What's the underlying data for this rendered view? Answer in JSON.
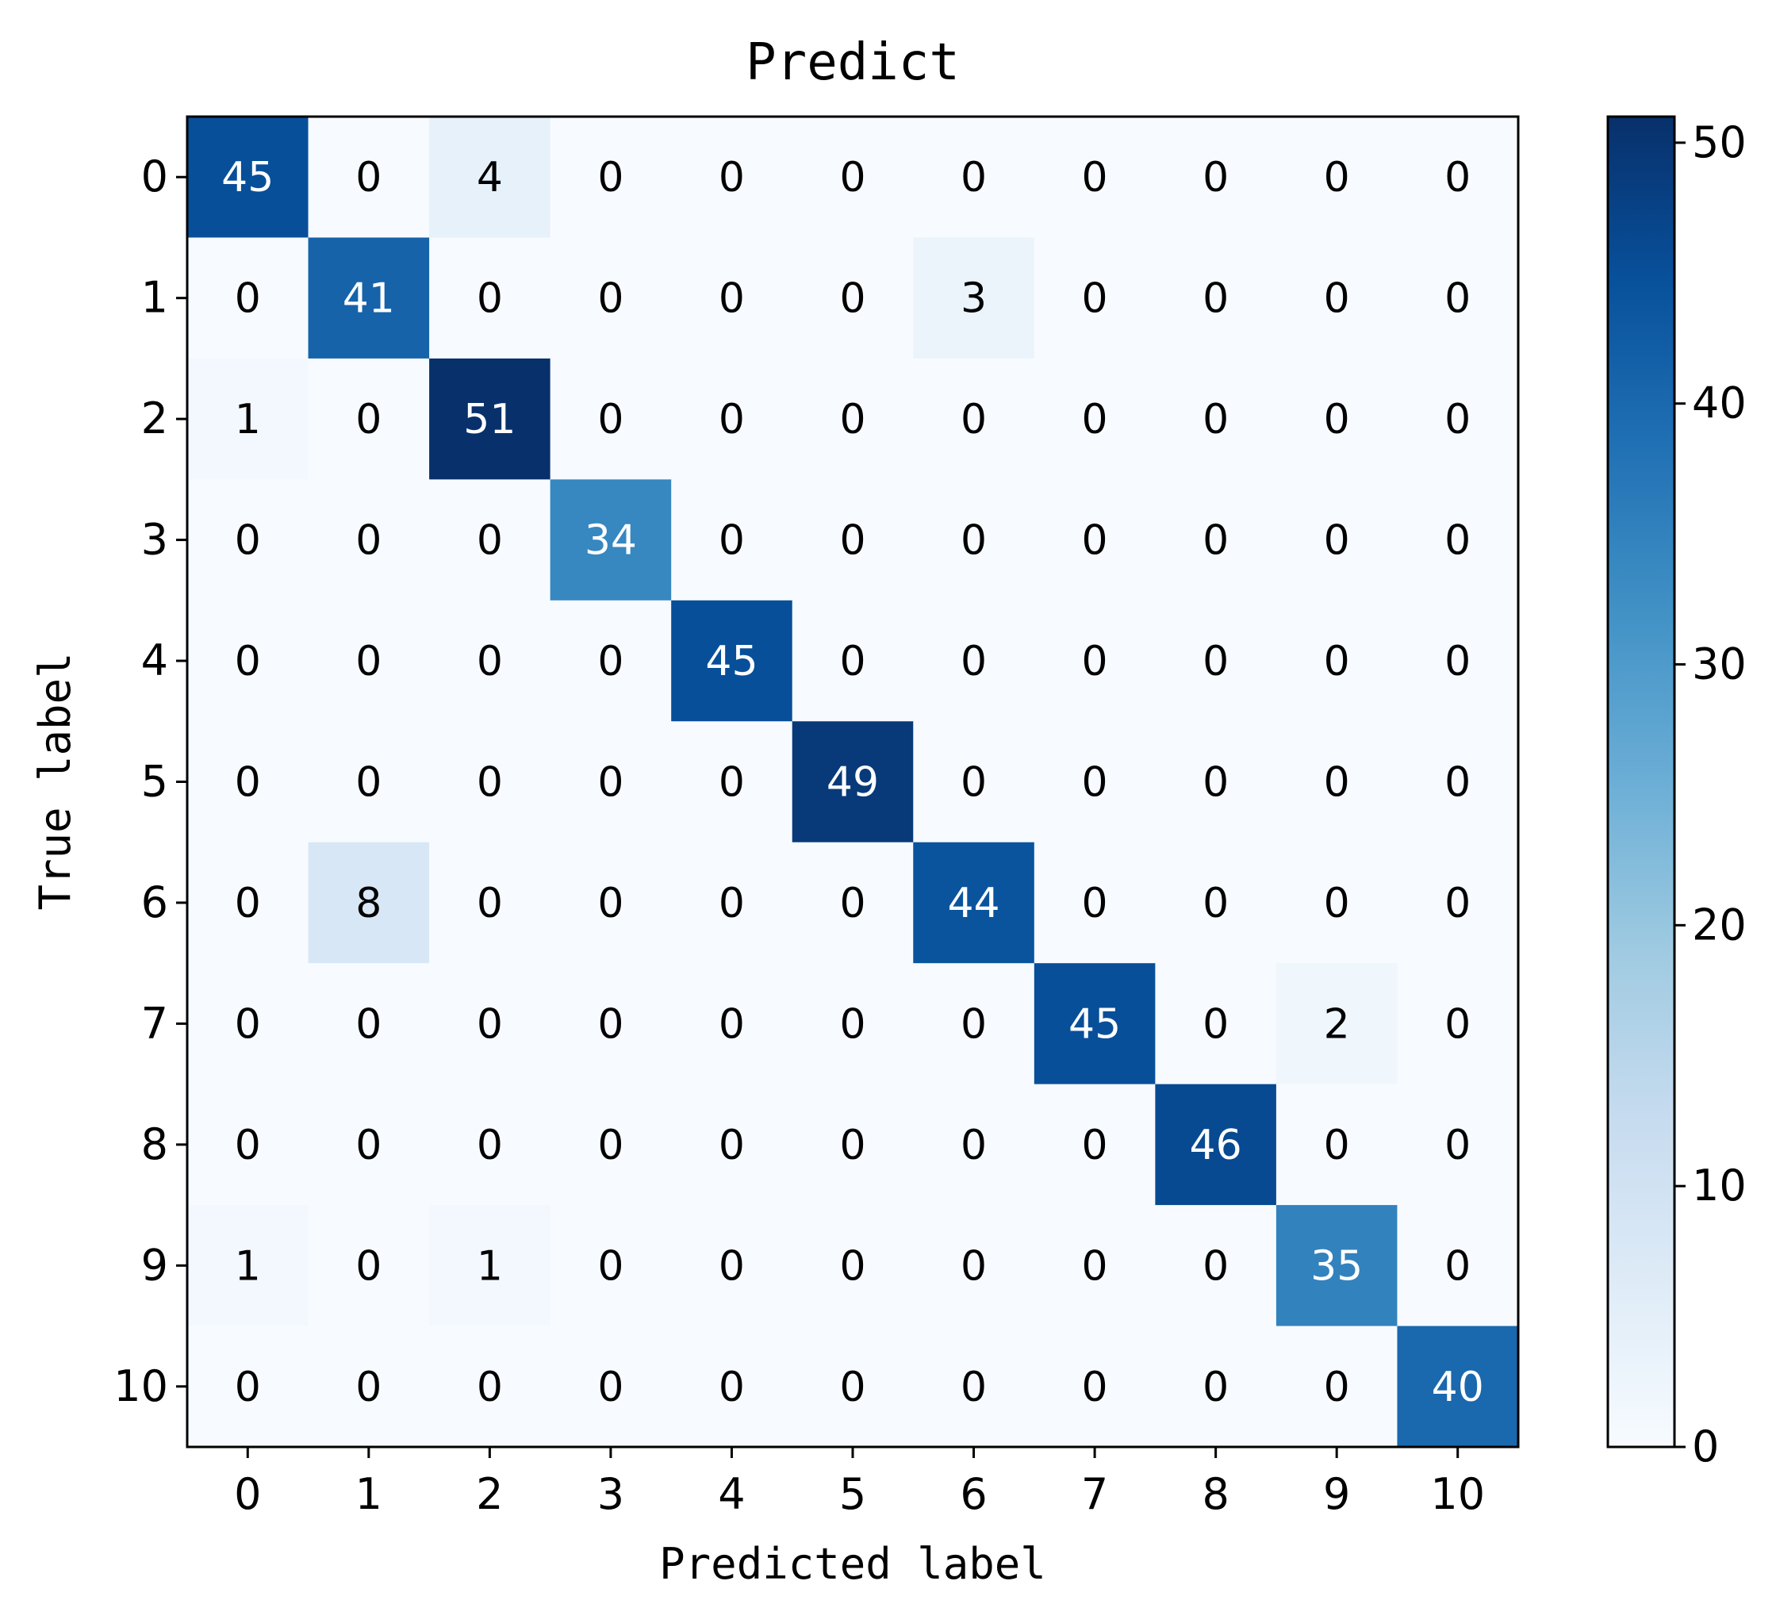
{
  "chart_data": {
    "type": "heatmap",
    "title": "Predict",
    "xlabel": "Predicted label",
    "ylabel": "True label",
    "x_categories": [
      "0",
      "1",
      "2",
      "3",
      "4",
      "5",
      "6",
      "7",
      "8",
      "9",
      "10"
    ],
    "y_categories": [
      "0",
      "1",
      "2",
      "3",
      "4",
      "5",
      "6",
      "7",
      "8",
      "9",
      "10"
    ],
    "matrix": [
      [
        45,
        0,
        4,
        0,
        0,
        0,
        0,
        0,
        0,
        0,
        0
      ],
      [
        0,
        41,
        0,
        0,
        0,
        0,
        3,
        0,
        0,
        0,
        0
      ],
      [
        1,
        0,
        51,
        0,
        0,
        0,
        0,
        0,
        0,
        0,
        0
      ],
      [
        0,
        0,
        0,
        34,
        0,
        0,
        0,
        0,
        0,
        0,
        0
      ],
      [
        0,
        0,
        0,
        0,
        45,
        0,
        0,
        0,
        0,
        0,
        0
      ],
      [
        0,
        0,
        0,
        0,
        0,
        49,
        0,
        0,
        0,
        0,
        0
      ],
      [
        0,
        8,
        0,
        0,
        0,
        0,
        44,
        0,
        0,
        0,
        0
      ],
      [
        0,
        0,
        0,
        0,
        0,
        0,
        0,
        45,
        0,
        2,
        0
      ],
      [
        0,
        0,
        0,
        0,
        0,
        0,
        0,
        0,
        46,
        0,
        0
      ],
      [
        1,
        0,
        1,
        0,
        0,
        0,
        0,
        0,
        0,
        35,
        0
      ],
      [
        0,
        0,
        0,
        0,
        0,
        0,
        0,
        0,
        0,
        0,
        40
      ]
    ],
    "colormap": "Blues",
    "value_range": [
      0,
      51
    ],
    "colorbar": {
      "ticks": [
        0,
        10,
        20,
        30,
        40,
        50
      ],
      "tick_labels": [
        "0",
        "10",
        "20",
        "30",
        "40",
        "50"
      ]
    },
    "grid": false,
    "legend": "colorbar-right"
  }
}
